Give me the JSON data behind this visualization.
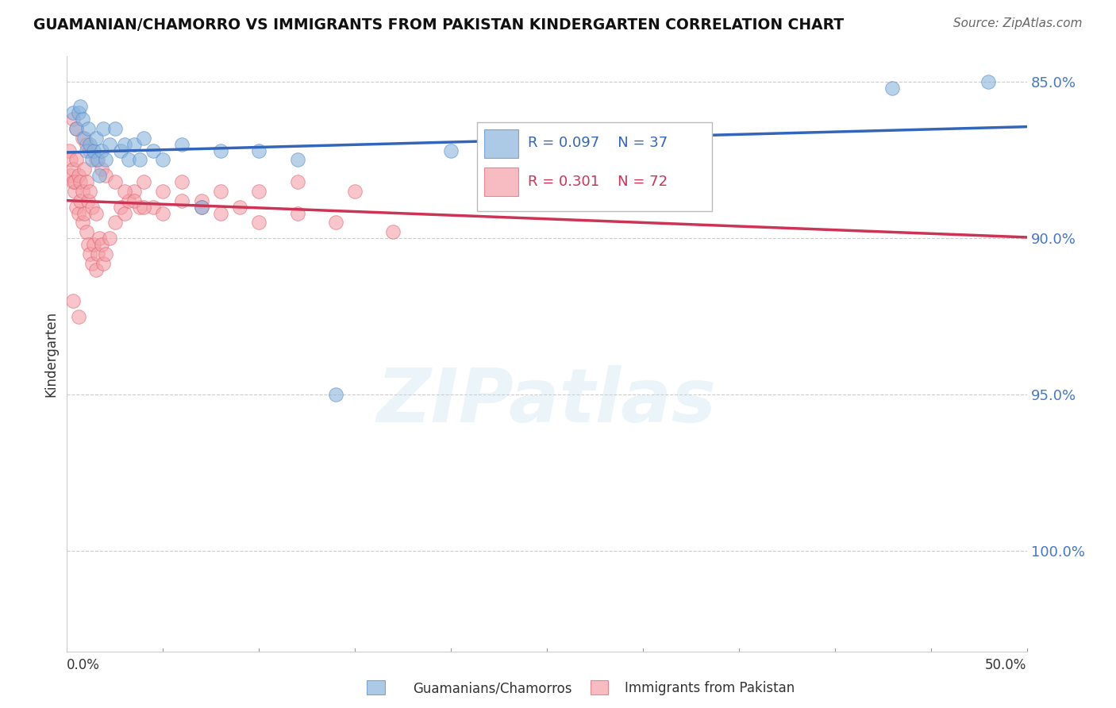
{
  "title": "GUAMANIAN/CHAMORRO VS IMMIGRANTS FROM PAKISTAN KINDERGARTEN CORRELATION CHART",
  "source": "Source: ZipAtlas.com",
  "ylabel": "Kindergarten",
  "xlim": [
    0.0,
    0.5
  ],
  "ylim": [
    0.818,
    1.008
  ],
  "yticks": [
    0.85,
    0.9,
    0.95,
    1.0
  ],
  "ylabel_right_labels": [
    "100.0%",
    "95.0%",
    "90.0%",
    "85.0%"
  ],
  "legend_R_blue": "R = 0.097",
  "legend_N_blue": "N = 37",
  "legend_R_pink": "R = 0.301",
  "legend_N_pink": "N = 72",
  "blue_color": "#89B4DC",
  "pink_color": "#F4A0A8",
  "blue_edge_color": "#5588CC",
  "pink_edge_color": "#E06070",
  "blue_trend_color": "#3366BB",
  "pink_trend_color": "#CC3355",
  "background_color": "#ffffff",
  "watermark": "ZIPatlas",
  "blue_scatter_x": [
    0.003,
    0.005,
    0.006,
    0.007,
    0.008,
    0.009,
    0.01,
    0.011,
    0.012,
    0.013,
    0.014,
    0.015,
    0.016,
    0.017,
    0.018,
    0.019,
    0.02,
    0.022,
    0.025,
    0.028,
    0.03,
    0.032,
    0.035,
    0.038,
    0.04,
    0.045,
    0.05,
    0.06,
    0.07,
    0.08,
    0.1,
    0.12,
    0.14,
    0.2,
    0.25,
    0.43,
    0.48
  ],
  "blue_scatter_y": [
    0.99,
    0.985,
    0.99,
    0.992,
    0.988,
    0.982,
    0.978,
    0.985,
    0.98,
    0.975,
    0.978,
    0.982,
    0.975,
    0.97,
    0.978,
    0.985,
    0.975,
    0.98,
    0.985,
    0.978,
    0.98,
    0.975,
    0.98,
    0.975,
    0.982,
    0.978,
    0.975,
    0.98,
    0.96,
    0.978,
    0.978,
    0.975,
    0.9,
    0.978,
    0.982,
    0.998,
    1.0
  ],
  "pink_scatter_x": [
    0.001,
    0.002,
    0.002,
    0.003,
    0.003,
    0.004,
    0.004,
    0.005,
    0.005,
    0.006,
    0.006,
    0.007,
    0.007,
    0.008,
    0.008,
    0.009,
    0.009,
    0.01,
    0.01,
    0.011,
    0.011,
    0.012,
    0.012,
    0.013,
    0.013,
    0.014,
    0.015,
    0.015,
    0.016,
    0.017,
    0.018,
    0.019,
    0.02,
    0.022,
    0.025,
    0.028,
    0.03,
    0.032,
    0.035,
    0.038,
    0.04,
    0.045,
    0.05,
    0.06,
    0.07,
    0.08,
    0.09,
    0.1,
    0.12,
    0.15,
    0.003,
    0.005,
    0.008,
    0.01,
    0.012,
    0.015,
    0.018,
    0.02,
    0.025,
    0.03,
    0.035,
    0.04,
    0.05,
    0.06,
    0.07,
    0.08,
    0.1,
    0.12,
    0.14,
    0.17,
    0.003,
    0.006
  ],
  "pink_scatter_y": [
    0.978,
    0.975,
    0.97,
    0.968,
    0.972,
    0.965,
    0.968,
    0.96,
    0.975,
    0.958,
    0.97,
    0.962,
    0.968,
    0.955,
    0.965,
    0.958,
    0.972,
    0.952,
    0.968,
    0.948,
    0.962,
    0.945,
    0.965,
    0.942,
    0.96,
    0.948,
    0.94,
    0.958,
    0.945,
    0.95,
    0.948,
    0.942,
    0.945,
    0.95,
    0.955,
    0.96,
    0.958,
    0.962,
    0.965,
    0.96,
    0.968,
    0.96,
    0.965,
    0.968,
    0.962,
    0.965,
    0.96,
    0.965,
    0.968,
    0.965,
    0.988,
    0.985,
    0.982,
    0.98,
    0.978,
    0.975,
    0.972,
    0.97,
    0.968,
    0.965,
    0.962,
    0.96,
    0.958,
    0.962,
    0.96,
    0.958,
    0.955,
    0.958,
    0.955,
    0.952,
    0.93,
    0.925
  ]
}
